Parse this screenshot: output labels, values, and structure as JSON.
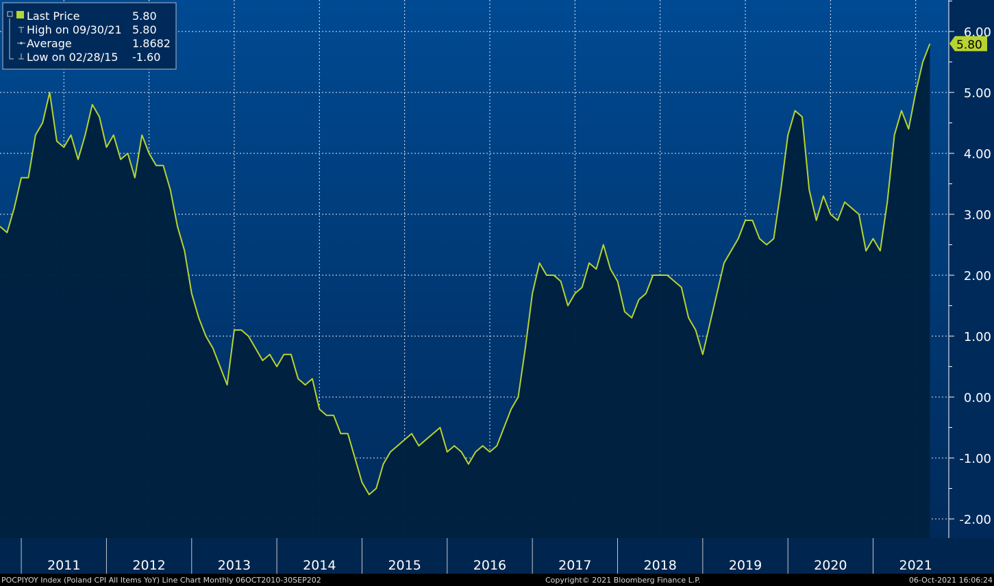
{
  "legend": {
    "items": [
      {
        "label": "Last Price",
        "value": "5.80"
      },
      {
        "label": "High on 09/30/21",
        "value": "5.80"
      },
      {
        "label": "Average",
        "value": "1.8682"
      },
      {
        "label": "Low on 02/28/15",
        "value": "-1.60"
      }
    ]
  },
  "last_value_label": "5.80",
  "footer": {
    "left": "POCPIYOY Index (Poland CPI All Items YoY) Line Chart  Monthly 06OCT2010-30SEP202",
    "center": "Copyright© 2021 Bloomberg Finance L.P.",
    "right": "06-Oct-2021 16:06:24"
  },
  "colors": {
    "background_top": "#004a93",
    "background_bottom": "#002a5a",
    "area_fill": "#00213f",
    "line": "#b7d430",
    "axis_bar": "#002650"
  },
  "chart_data": {
    "type": "area",
    "frequency": "Monthly",
    "x_start": "2010-10",
    "x_end": "2021-09",
    "year_labels": [
      "2011",
      "2012",
      "2013",
      "2014",
      "2015",
      "2016",
      "2017",
      "2018",
      "2019",
      "2020",
      "2021"
    ],
    "y_ticks": [
      "6.00",
      "5.00",
      "4.00",
      "3.00",
      "2.00",
      "1.00",
      "0.00",
      "-1.00",
      "-2.00"
    ],
    "ylim": [
      -2.3,
      6.6
    ],
    "grid": true,
    "legend_position": "top-left",
    "values": [
      2.8,
      2.7,
      3.1,
      3.6,
      3.6,
      4.3,
      4.5,
      5.0,
      4.2,
      4.1,
      4.3,
      3.9,
      4.3,
      4.8,
      4.6,
      4.1,
      4.3,
      3.9,
      4.0,
      3.6,
      4.3,
      4.0,
      3.8,
      3.8,
      3.4,
      2.8,
      2.4,
      1.7,
      1.3,
      1.0,
      0.8,
      0.5,
      0.2,
      1.1,
      1.1,
      1.0,
      0.8,
      0.6,
      0.7,
      0.5,
      0.7,
      0.7,
      0.3,
      0.2,
      0.3,
      -0.2,
      -0.3,
      -0.3,
      -0.6,
      -0.6,
      -1.0,
      -1.4,
      -1.6,
      -1.5,
      -1.1,
      -0.9,
      -0.8,
      -0.7,
      -0.6,
      -0.8,
      -0.7,
      -0.6,
      -0.5,
      -0.9,
      -0.8,
      -0.9,
      -1.1,
      -0.9,
      -0.8,
      -0.9,
      -0.8,
      -0.5,
      -0.2,
      0.0,
      0.8,
      1.7,
      2.2,
      2.0,
      2.0,
      1.9,
      1.5,
      1.7,
      1.8,
      2.2,
      2.1,
      2.5,
      2.1,
      1.9,
      1.4,
      1.3,
      1.6,
      1.7,
      2.0,
      2.0,
      2.0,
      1.9,
      1.8,
      1.3,
      1.1,
      0.7,
      1.2,
      1.7,
      2.2,
      2.4,
      2.6,
      2.9,
      2.9,
      2.6,
      2.5,
      2.6,
      3.4,
      4.3,
      4.7,
      4.6,
      3.4,
      2.9,
      3.3,
      3.0,
      2.9,
      3.2,
      3.1,
      3.0,
      2.4,
      2.6,
      2.4,
      3.2,
      4.3,
      4.7,
      4.4,
      5.0,
      5.5,
      5.8
    ]
  }
}
